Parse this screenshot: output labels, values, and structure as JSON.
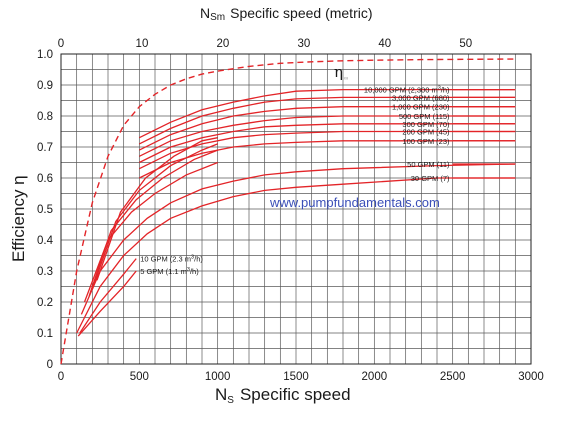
{
  "chart_data": {
    "type": "line",
    "xlabel_main": "N",
    "xlabel_sub": "S",
    "xlabel_text": "Specific speed",
    "top_xlabel_main": "N",
    "top_xlabel_sub": "Sm",
    "top_xlabel_text": "Specific speed  (metric)",
    "ylabel": "Efficiency  η",
    "xlim": [
      0,
      3000
    ],
    "ylim": [
      0,
      1.0
    ],
    "top_xlim": [
      0,
      58.06
    ],
    "x_ticks": [
      0,
      500,
      1000,
      1500,
      2000,
      2500,
      3000
    ],
    "y_ticks": [
      "0",
      "0.1",
      "0.2",
      "0.3",
      "0.4",
      "0.5",
      "0.6",
      "0.7",
      "0.8",
      "0.9",
      "1.0"
    ],
    "top_ticks": [
      0,
      10,
      20,
      30,
      40,
      50
    ],
    "grid": true,
    "watermark": "www.pumpfundamentals.com",
    "envelope": {
      "label_main": "η",
      "label_sub": "∞",
      "style": "dashed",
      "x": [
        0,
        100,
        200,
        300,
        400,
        500,
        600,
        700,
        800,
        900,
        1000,
        1200,
        1400,
        1600,
        1800,
        2000,
        2300,
        2600,
        2900
      ],
      "y": [
        0.0,
        0.3,
        0.52,
        0.67,
        0.77,
        0.83,
        0.87,
        0.9,
        0.92,
        0.935,
        0.945,
        0.96,
        0.97,
        0.975,
        0.978,
        0.98,
        0.982,
        0.983,
        0.984
      ]
    },
    "series": [
      {
        "name": "10,000 GPM (2,300 m",
        "unit_sup": "3",
        "unit_tail": "/h)",
        "x": [
          500,
          700,
          900,
          1100,
          1300,
          1500,
          1800,
          2400,
          2900
        ],
        "y": [
          0.73,
          0.78,
          0.82,
          0.845,
          0.865,
          0.88,
          0.885,
          0.885,
          0.885
        ]
      },
      {
        "name": "3,000 GPM (680)",
        "x": [
          500,
          700,
          900,
          1100,
          1300,
          1500,
          1800,
          2400,
          2900
        ],
        "y": [
          0.71,
          0.76,
          0.8,
          0.825,
          0.845,
          0.855,
          0.86,
          0.86,
          0.86
        ]
      },
      {
        "name": "1,000 GPM (230)",
        "x": [
          500,
          700,
          900,
          1100,
          1300,
          1500,
          1800,
          2400,
          2900
        ],
        "y": [
          0.69,
          0.74,
          0.775,
          0.8,
          0.815,
          0.825,
          0.83,
          0.83,
          0.83
        ]
      },
      {
        "name": "500 GPM (115)",
        "x": [
          500,
          700,
          900,
          1100,
          1300,
          1500,
          1800,
          2400,
          2900
        ],
        "y": [
          0.67,
          0.72,
          0.75,
          0.77,
          0.785,
          0.795,
          0.8,
          0.8,
          0.8
        ]
      },
      {
        "name": "300 GPM (70)",
        "x": [
          500,
          700,
          900,
          1100,
          1300,
          1500,
          1800,
          2400,
          2900
        ],
        "y": [
          0.65,
          0.7,
          0.73,
          0.75,
          0.765,
          0.77,
          0.775,
          0.775,
          0.775
        ]
      },
      {
        "name": "200 GPM (45)",
        "x": [
          500,
          700,
          900,
          1100,
          1300,
          1500,
          1800,
          2400,
          2900
        ],
        "y": [
          0.63,
          0.68,
          0.71,
          0.73,
          0.74,
          0.745,
          0.75,
          0.75,
          0.75
        ]
      },
      {
        "name": "100 GPM (23)",
        "x": [
          500,
          700,
          900,
          1100,
          1300,
          1500,
          1800,
          2400,
          2900
        ],
        "y": [
          0.6,
          0.65,
          0.68,
          0.7,
          0.71,
          0.715,
          0.72,
          0.72,
          0.72
        ]
      },
      {
        "name": "50 GPM (11)",
        "x": [
          130,
          250,
          400,
          550,
          700,
          900,
          1100,
          1300,
          1500,
          1800,
          2400,
          2900
        ],
        "y": [
          0.16,
          0.3,
          0.4,
          0.47,
          0.52,
          0.565,
          0.59,
          0.61,
          0.62,
          0.63,
          0.64,
          0.645
        ]
      },
      {
        "name": "30 GPM (7)",
        "x": [
          100,
          250,
          400,
          550,
          700,
          900,
          1100,
          1300,
          1500,
          1800,
          2400,
          2900
        ],
        "y": [
          0.1,
          0.25,
          0.35,
          0.42,
          0.47,
          0.51,
          0.54,
          0.56,
          0.57,
          0.58,
          0.6,
          0.6
        ]
      },
      {
        "name": "10 GPM (2.3 m",
        "unit_sup": "3",
        "unit_tail": "/h)",
        "x": [
          120,
          250,
          400,
          480
        ],
        "y": [
          0.1,
          0.2,
          0.29,
          0.34
        ]
      },
      {
        "name": "5 GPM (1.1 m",
        "unit_sup": "3",
        "unit_tail": "/h)",
        "x": [
          110,
          250,
          400,
          480
        ],
        "y": [
          0.09,
          0.17,
          0.25,
          0.3
        ]
      }
    ],
    "extra_low_segments": [
      {
        "x": [
          150,
          300,
          450,
          600,
          800,
          1000
        ],
        "y": [
          0.2,
          0.4,
          0.49,
          0.55,
          0.61,
          0.65
        ]
      },
      {
        "x": [
          180,
          320,
          480,
          650,
          850,
          1000
        ],
        "y": [
          0.22,
          0.43,
          0.53,
          0.6,
          0.66,
          0.69
        ]
      },
      {
        "x": [
          200,
          350,
          500,
          700,
          900,
          1000
        ],
        "y": [
          0.24,
          0.46,
          0.56,
          0.64,
          0.69,
          0.71
        ]
      },
      {
        "x": [
          230,
          380,
          540,
          720,
          900,
          1000
        ],
        "y": [
          0.27,
          0.49,
          0.6,
          0.67,
          0.72,
          0.73
        ]
      }
    ]
  }
}
